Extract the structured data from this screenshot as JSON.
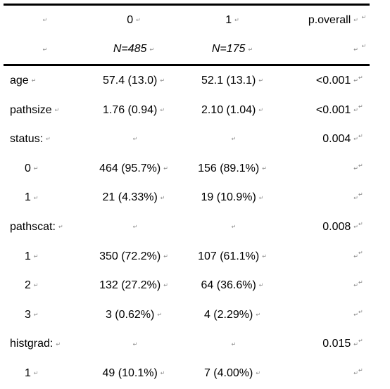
{
  "table": {
    "headers": [
      "",
      "0",
      "1",
      "p.overall"
    ],
    "n_row": [
      "",
      "N=485",
      "N=175",
      ""
    ],
    "rows": [
      {
        "label": "age",
        "c0": "57.4 (13.0)",
        "c1": "52.1 (13.1)",
        "p": "<0.001"
      },
      {
        "label": "pathsize",
        "c0": "1.76 (0.94)",
        "c1": "2.10 (1.04)",
        "p": "<0.001"
      },
      {
        "label": "status:",
        "c0": "",
        "c1": "",
        "p": "0.004"
      },
      {
        "label": "0",
        "c0": "464 (95.7%)",
        "c1": "156 (89.1%)",
        "p": ""
      },
      {
        "label": "1",
        "c0": "21 (4.33%)",
        "c1": "19 (10.9%)",
        "p": ""
      },
      {
        "label": "pathscat:",
        "c0": "",
        "c1": "",
        "p": "0.008"
      },
      {
        "label": "1",
        "c0": "350 (72.2%)",
        "c1": "107 (61.1%)",
        "p": ""
      },
      {
        "label": "2",
        "c0": "132 (27.2%)",
        "c1": "64 (36.6%)",
        "p": ""
      },
      {
        "label": "3",
        "c0": "3 (0.62%)",
        "c1": "4 (2.29%)",
        "p": ""
      },
      {
        "label": "histgrad:",
        "c0": "",
        "c1": "",
        "p": "0.015"
      },
      {
        "label": "1",
        "c0": "49 (10.1%)",
        "c1": "7 (4.00%)",
        "p": ""
      }
    ]
  },
  "marks": {
    "paragraph": "↵",
    "cell_end": "↵"
  }
}
